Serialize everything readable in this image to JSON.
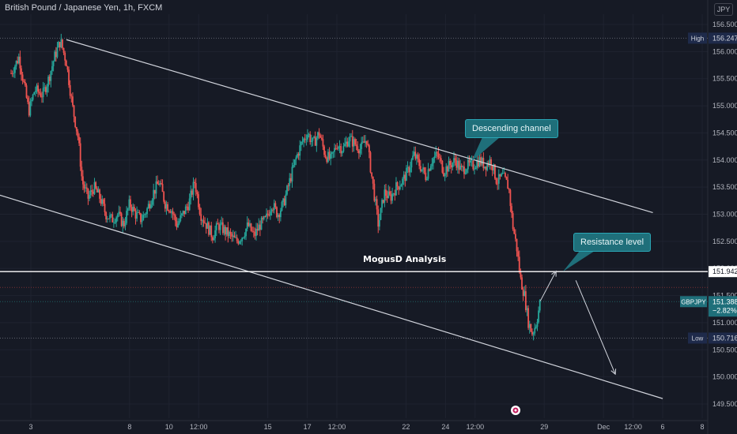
{
  "header": {
    "title": "British Pound / Japanese Yen, 1h, FXCM",
    "currency": "JPY"
  },
  "watermark_text": "MogusD Analysis",
  "colors": {
    "background": "#161a25",
    "up": "#26a69a",
    "down": "#ef5350",
    "annotation": "#d1d4dc",
    "callout": "#1f6f7a"
  },
  "chart_data": {
    "type": "candlestick",
    "title": "British Pound / Japanese Yen, 1h, FXCM",
    "ylim": [
      149.3,
      156.7
    ],
    "y_ticks": [
      "149.500",
      "150.000",
      "150.500",
      "151.000",
      "151.500",
      "152.000",
      "152.500",
      "153.000",
      "153.500",
      "154.000",
      "154.500",
      "155.000",
      "155.500",
      "156.000",
      "156.500"
    ],
    "x_ticks": [
      {
        "label": "3",
        "day": 3
      },
      {
        "label": "8",
        "day": 8
      },
      {
        "label": "10",
        "day": 10
      },
      {
        "label": "12:00",
        "day": 11.5
      },
      {
        "label": "15",
        "day": 15
      },
      {
        "label": "17",
        "day": 17
      },
      {
        "label": "12:00",
        "day": 18.5
      },
      {
        "label": "22",
        "day": 22
      },
      {
        "label": "24",
        "day": 24
      },
      {
        "label": "12:00",
        "day": 25.5
      },
      {
        "label": "29",
        "day": 29
      },
      {
        "label": "Dec",
        "day": 32
      },
      {
        "label": "12:00",
        "day": 33.5
      },
      {
        "label": "6",
        "day": 35
      },
      {
        "label": "8",
        "day": 37
      }
    ],
    "price_tags": [
      {
        "name": "High",
        "value": 156.247,
        "label": "156.247",
        "kind": "high"
      },
      {
        "name": "",
        "value": 151.942,
        "label": "151.942",
        "kind": "level"
      },
      {
        "name": "GBPJPY",
        "value": 151.388,
        "label": "151.388",
        "sub": "−2.82%",
        "kind": "current"
      },
      {
        "name": "Low",
        "value": 150.716,
        "label": "150.716",
        "kind": "low"
      }
    ],
    "close_path": [
      [
        2.0,
        155.6
      ],
      [
        2.4,
        155.9
      ],
      [
        2.7,
        155.3
      ],
      [
        2.9,
        154.9
      ],
      [
        3.2,
        155.3
      ],
      [
        3.6,
        155.2
      ],
      [
        3.9,
        155.5
      ],
      [
        4.2,
        155.9
      ],
      [
        4.5,
        156.2
      ],
      [
        4.8,
        155.8
      ],
      [
        5.1,
        155.0
      ],
      [
        5.4,
        154.4
      ],
      [
        5.6,
        153.6
      ],
      [
        5.9,
        153.3
      ],
      [
        6.2,
        153.5
      ],
      [
        6.5,
        153.3
      ],
      [
        6.8,
        153.0
      ],
      [
        7.1,
        152.9
      ],
      [
        7.4,
        153.0
      ],
      [
        7.7,
        152.8
      ],
      [
        8.0,
        153.2
      ],
      [
        8.3,
        153.0
      ],
      [
        8.6,
        152.9
      ],
      [
        8.9,
        153.1
      ],
      [
        9.2,
        153.4
      ],
      [
        9.5,
        153.6
      ],
      [
        9.8,
        153.2
      ],
      [
        10.1,
        153.1
      ],
      [
        10.4,
        152.8
      ],
      [
        10.7,
        153.0
      ],
      [
        11.0,
        153.2
      ],
      [
        11.3,
        153.6
      ],
      [
        11.6,
        153.0
      ],
      [
        11.9,
        152.8
      ],
      [
        12.2,
        152.6
      ],
      [
        12.5,
        152.8
      ],
      [
        12.8,
        152.7
      ],
      [
        13.1,
        152.6
      ],
      [
        13.4,
        152.5
      ],
      [
        13.7,
        152.6
      ],
      [
        14.0,
        152.8
      ],
      [
        14.3,
        152.6
      ],
      [
        14.6,
        152.8
      ],
      [
        14.9,
        152.9
      ],
      [
        15.2,
        153.2
      ],
      [
        15.5,
        153.0
      ],
      [
        15.8,
        153.2
      ],
      [
        16.1,
        153.6
      ],
      [
        16.4,
        154.0
      ],
      [
        16.7,
        154.3
      ],
      [
        17.0,
        154.5
      ],
      [
        17.3,
        154.3
      ],
      [
        17.6,
        154.5
      ],
      [
        17.9,
        154.1
      ],
      [
        18.2,
        154.0
      ],
      [
        18.5,
        154.3
      ],
      [
        18.8,
        154.2
      ],
      [
        19.1,
        154.4
      ],
      [
        19.4,
        154.3
      ],
      [
        19.7,
        154.2
      ],
      [
        20.0,
        154.4
      ],
      [
        20.3,
        153.6
      ],
      [
        20.6,
        152.8
      ],
      [
        20.9,
        153.4
      ],
      [
        21.2,
        153.3
      ],
      [
        21.5,
        153.5
      ],
      [
        21.8,
        153.6
      ],
      [
        22.1,
        153.8
      ],
      [
        22.4,
        154.1
      ],
      [
        22.7,
        153.9
      ],
      [
        23.0,
        153.7
      ],
      [
        23.3,
        154.0
      ],
      [
        23.6,
        154.1
      ],
      [
        23.9,
        153.8
      ],
      [
        24.2,
        153.9
      ],
      [
        24.5,
        154.0
      ],
      [
        24.8,
        153.8
      ],
      [
        25.1,
        153.9
      ],
      [
        25.4,
        153.9
      ],
      [
        25.7,
        154.0
      ],
      [
        26.0,
        153.9
      ],
      [
        26.3,
        154.0
      ],
      [
        26.6,
        153.6
      ],
      [
        26.9,
        153.7
      ],
      [
        27.2,
        153.5
      ],
      [
        27.4,
        152.8
      ],
      [
        27.6,
        152.4
      ],
      [
        27.8,
        151.8
      ],
      [
        28.0,
        151.5
      ],
      [
        28.2,
        151.0
      ],
      [
        28.4,
        150.8
      ],
      [
        28.6,
        151.0
      ],
      [
        28.8,
        151.39
      ]
    ],
    "annotations": {
      "descending_channel_upper": [
        [
          4.8,
          156.22
        ],
        [
          34.5,
          153.03
        ]
      ],
      "descending_channel_lower": [
        [
          1.0,
          153.4
        ],
        [
          35.0,
          149.6
        ]
      ],
      "resistance_level": 151.942,
      "high_line": 156.247,
      "low_line": 150.716,
      "projected_path": [
        [
          28.8,
          151.4
        ],
        [
          29.6,
          151.95
        ],
        [
          30.6,
          151.78
        ],
        [
          32.6,
          150.05
        ]
      ],
      "callouts": [
        "Descending channel",
        "Resistance level"
      ]
    }
  }
}
